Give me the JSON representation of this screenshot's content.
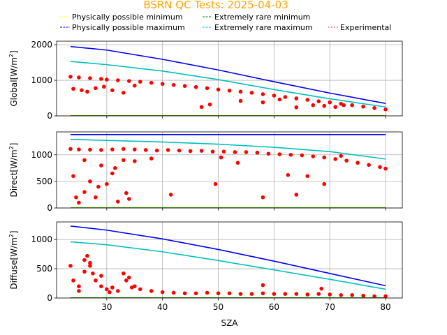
{
  "title": "BSRN QC Tests: 2025-04-03",
  "colors": {
    "title": "#ffa500",
    "phys_min": "#ffff00",
    "phys_max": "#0000ff",
    "rare_min": "#008000",
    "rare_max": "#00bfbf",
    "experimental": "#ff0000",
    "grid": "#b0b0b0"
  },
  "legend": [
    {
      "label": "Physically possible minimum",
      "key": "phys_min"
    },
    {
      "label": "Extremely rare minimum",
      "key": "rare_min"
    },
    {
      "label": "Physically possible maximum",
      "key": "phys_max"
    },
    {
      "label": "Extremely rare maximum",
      "key": "rare_max"
    },
    {
      "label": "Experimental",
      "key": "experimental"
    }
  ],
  "chart_data": [
    {
      "type": "line",
      "name": "global",
      "xlabel": "",
      "ylabel_main": "Global[W/m",
      "ylabel_sup": "2",
      "ylabel_end": "]",
      "xlim": [
        21,
        83
      ],
      "ylim": [
        0,
        2100
      ],
      "yticks": [
        0,
        1000,
        2000
      ],
      "xticks": [
        30,
        40,
        50,
        60,
        70,
        80
      ],
      "grid": true,
      "series": [
        {
          "key": "phys_max",
          "x": [
            23.5,
            30,
            40,
            50,
            60,
            70,
            80
          ],
          "y": [
            1950,
            1850,
            1590,
            1290,
            960,
            640,
            350
          ]
        },
        {
          "key": "rare_max",
          "x": [
            23.5,
            30,
            40,
            50,
            60,
            70,
            80
          ],
          "y": [
            1530,
            1440,
            1260,
            1020,
            740,
            480,
            250
          ]
        },
        {
          "key": "rare_min",
          "x": [
            23.5,
            80
          ],
          "y": [
            5,
            5
          ]
        },
        {
          "key": "phys_min",
          "x": [
            23.5,
            80
          ],
          "y": [
            -4,
            -4
          ]
        },
        {
          "key": "experimental",
          "scatter": true,
          "x": [
            23.5,
            25,
            27,
            29,
            30,
            32,
            34,
            36,
            38,
            40,
            42,
            44,
            46,
            48,
            50,
            52,
            54,
            56,
            58,
            60,
            62,
            64,
            66,
            68,
            70,
            72,
            74,
            76,
            78,
            80,
            24,
            25.5,
            26.5,
            28,
            29.5,
            31,
            33,
            35,
            47,
            48.5,
            54,
            58,
            61,
            64,
            67,
            69,
            71,
            72.5
          ],
          "y": [
            1100,
            1080,
            1060,
            1040,
            1020,
            1000,
            980,
            960,
            930,
            900,
            870,
            840,
            810,
            780,
            740,
            710,
            680,
            650,
            610,
            570,
            530,
            490,
            450,
            410,
            380,
            340,
            300,
            260,
            220,
            180,
            760,
            720,
            680,
            780,
            820,
            720,
            650,
            850,
            250,
            320,
            420,
            380,
            460,
            240,
            300,
            280,
            250,
            300
          ]
        }
      ]
    },
    {
      "type": "line",
      "name": "direct",
      "xlabel": "",
      "ylabel_main": "Direct[W/m",
      "ylabel_sup": "2",
      "ylabel_end": "]",
      "xlim": [
        21,
        83
      ],
      "ylim": [
        0,
        1430
      ],
      "yticks": [
        0,
        500,
        1000
      ],
      "xticks": [
        30,
        40,
        50,
        60,
        70,
        80
      ],
      "grid": true,
      "series": [
        {
          "key": "phys_max",
          "x": [
            23.5,
            80
          ],
          "y": [
            1380,
            1380
          ]
        },
        {
          "key": "rare_max",
          "x": [
            23.5,
            30,
            40,
            50,
            60,
            70,
            80
          ],
          "y": [
            1290,
            1270,
            1240,
            1200,
            1140,
            1060,
            920
          ]
        },
        {
          "key": "rare_min",
          "x": [
            23.5,
            80
          ],
          "y": [
            5,
            5
          ]
        },
        {
          "key": "phys_min",
          "x": [
            23.5,
            80
          ],
          "y": [
            -3,
            -3
          ]
        },
        {
          "key": "experimental",
          "scatter": true,
          "x": [
            23.5,
            25,
            27,
            29,
            31,
            33,
            35,
            37,
            39,
            41,
            43,
            45,
            47,
            49,
            51,
            53,
            55,
            57,
            59,
            61,
            63,
            65,
            67,
            69,
            71,
            73,
            75,
            77,
            79,
            80,
            24,
            25,
            26,
            27,
            28,
            29,
            30,
            31,
            32,
            33,
            34,
            35,
            38,
            41.5,
            49.5,
            50.5,
            53.5,
            58,
            62.5,
            64,
            66,
            69,
            72,
            24.5,
            26,
            28.5,
            31.5,
            33.5
          ],
          "y": [
            1110,
            1100,
            1095,
            1090,
            1100,
            1110,
            1100,
            1090,
            1080,
            1090,
            1080,
            1070,
            1075,
            1060,
            1060,
            1050,
            1050,
            1040,
            1020,
            1010,
            1000,
            990,
            970,
            950,
            920,
            890,
            850,
            810,
            770,
            740,
            600,
            100,
            300,
            500,
            200,
            800,
            450,
            650,
            120,
            900,
            170,
            880,
            930,
            250,
            450,
            950,
            850,
            200,
            620,
            250,
            600,
            450,
            980,
            200,
            900,
            400,
            750,
            280
          ]
        }
      ]
    },
    {
      "type": "line",
      "name": "diffuse",
      "xlabel": "SZA",
      "ylabel_main": "Diffuse[W/m",
      "ylabel_sup": "2",
      "ylabel_end": "]",
      "xlim": [
        21,
        83
      ],
      "ylim": [
        0,
        1300
      ],
      "yticks": [
        0,
        500,
        1000
      ],
      "xticks": [
        30,
        40,
        50,
        60,
        70,
        80
      ],
      "xticklabels": [
        "30",
        "40",
        "50",
        "60",
        "70",
        "80"
      ],
      "grid": true,
      "series": [
        {
          "key": "phys_max",
          "x": [
            23.5,
            30,
            40,
            50,
            60,
            70,
            80
          ],
          "y": [
            1230,
            1160,
            1010,
            830,
            630,
            420,
            210
          ]
        },
        {
          "key": "rare_max",
          "x": [
            23.5,
            30,
            40,
            50,
            60,
            70,
            80
          ],
          "y": [
            960,
            910,
            790,
            640,
            480,
            320,
            150
          ]
        },
        {
          "key": "rare_min",
          "x": [
            23.5,
            80
          ],
          "y": [
            3,
            3
          ]
        },
        {
          "key": "phys_min",
          "x": [
            23.5,
            80
          ],
          "y": [
            -3,
            -3
          ]
        },
        {
          "key": "experimental",
          "scatter": true,
          "x": [
            23.5,
            24,
            25,
            26,
            26.5,
            27,
            27.5,
            28,
            29,
            30,
            31,
            32,
            33,
            34,
            35,
            36,
            38,
            40,
            42,
            44,
            46,
            48,
            50,
            52,
            54,
            56,
            58,
            60,
            62,
            64,
            66,
            68,
            70,
            72,
            74,
            76,
            78,
            80,
            25,
            26,
            27,
            29,
            30.5,
            33.5,
            34.5,
            58,
            68.5
          ],
          "y": [
            550,
            300,
            120,
            650,
            720,
            600,
            420,
            300,
            200,
            150,
            180,
            120,
            420,
            350,
            200,
            150,
            120,
            100,
            90,
            80,
            80,
            90,
            80,
            80,
            70,
            70,
            80,
            70,
            70,
            70,
            60,
            70,
            60,
            50,
            50,
            40,
            30,
            30,
            200,
            450,
            550,
            380,
            100,
            300,
            180,
            220,
            160
          ]
        }
      ]
    }
  ]
}
